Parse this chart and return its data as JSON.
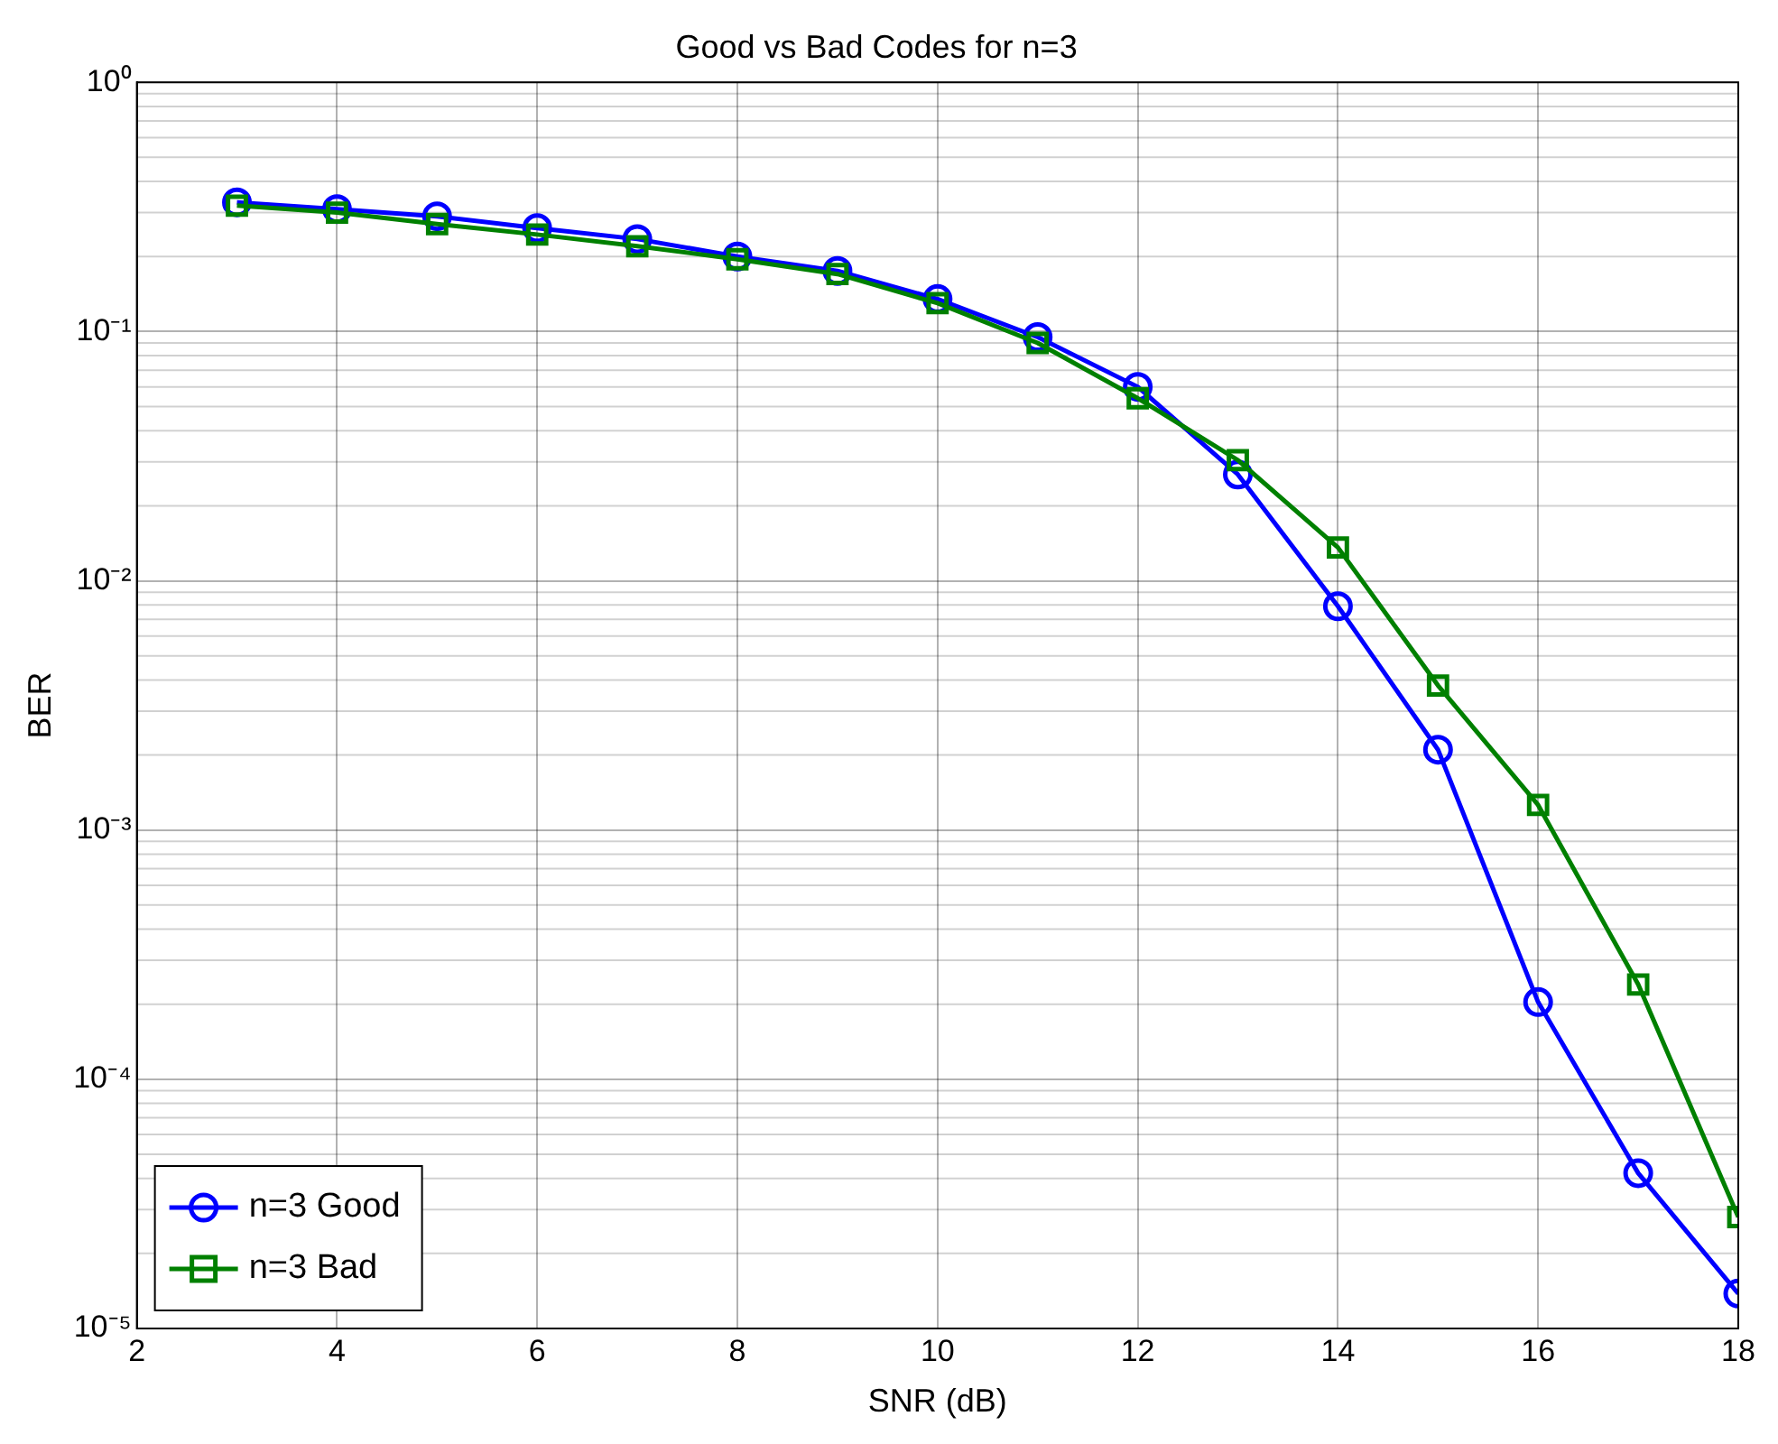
{
  "chart_data": {
    "type": "line",
    "title": "Good vs Bad Codes for n=3",
    "xlabel": "SNR (dB)",
    "ylabel": "BER",
    "x": [
      3,
      4,
      5,
      6,
      7,
      8,
      9,
      10,
      11,
      12,
      13,
      14,
      15,
      16,
      17,
      18
    ],
    "series": [
      {
        "name": "n=3 Good",
        "color": "#0000ff",
        "marker": "circle",
        "values": [
          0.33,
          0.31,
          0.29,
          0.26,
          0.235,
          0.2,
          0.175,
          0.135,
          0.095,
          0.06,
          0.0267,
          0.0079,
          0.0021,
          0.000204,
          4.2e-05,
          1.38e-05
        ]
      },
      {
        "name": "n=3 Bad",
        "color": "#008000",
        "marker": "square",
        "values": [
          0.32,
          0.3,
          0.27,
          0.245,
          0.22,
          0.195,
          0.17,
          0.13,
          0.09,
          0.054,
          0.0305,
          0.0136,
          0.0038,
          0.00126,
          0.00024,
          2.8e-05
        ]
      }
    ],
    "log": "y",
    "xlim": [
      2,
      18
    ],
    "xticks": [
      2,
      4,
      6,
      8,
      10,
      12,
      14,
      16,
      18
    ],
    "ylim": [
      1e-05,
      1
    ],
    "yticks": [
      {
        "value": 1e-05,
        "label": "10⁻⁵"
      },
      {
        "value": 0.0001,
        "label": "10⁻⁴"
      },
      {
        "value": 0.001,
        "label": "10⁻³"
      },
      {
        "value": 0.01,
        "label": "10⁻²"
      },
      {
        "value": 0.1,
        "label": "10⁻¹"
      },
      {
        "value": 1,
        "label": "10⁰"
      }
    ],
    "grid": true,
    "legend": "bottom left",
    "line_style": "solid"
  }
}
